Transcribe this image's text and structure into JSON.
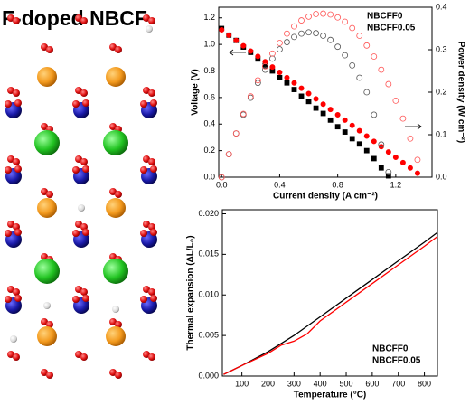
{
  "title": "F-doped NBCF",
  "chart_data": [
    {
      "type": "scatter",
      "xlabel": "Current density (A cm⁻²)",
      "ylabel": "Voltage (V)",
      "y2label": "Power density (W cm⁻²)",
      "xlim": [
        -0.02,
        1.45
      ],
      "xticks": [
        {
          "value": 0,
          "label": "0.0"
        },
        0.4,
        0.8,
        1.2
      ],
      "ylim": [
        0,
        1.28
      ],
      "yticks": [
        {
          "value": 0,
          "label": "0.0"
        },
        0.2,
        0.4,
        0.6,
        0.8,
        {
          "value": 1,
          "label": "1.0"
        },
        1.2
      ],
      "y2lim": [
        0,
        0.4
      ],
      "y2ticks": [
        {
          "value": 0,
          "label": "0.0"
        },
        0.1,
        0.2,
        0.3,
        0.4
      ],
      "legend": "top-right",
      "series": [
        {
          "name": "NBCFF0",
          "color": "#000000",
          "marker": "square",
          "filled": true,
          "x": [
            0,
            0.05,
            0.1,
            0.15,
            0.2,
            0.25,
            0.3,
            0.35,
            0.4,
            0.45,
            0.5,
            0.55,
            0.6,
            0.65,
            0.7,
            0.75,
            0.8,
            0.85,
            0.9,
            0.95,
            1.0,
            1.05,
            1.1,
            1.15
          ],
          "values": [
            1.12,
            1.07,
            1.03,
            0.98,
            0.94,
            0.89,
            0.84,
            0.8,
            0.75,
            0.71,
            0.66,
            0.61,
            0.57,
            0.52,
            0.48,
            0.43,
            0.38,
            0.34,
            0.29,
            0.25,
            0.2,
            0.14,
            0.07,
            0.01
          ]
        },
        {
          "name": "NBCFF0.05",
          "color": "#ff0000",
          "marker": "circle",
          "filled": true,
          "x": [
            0,
            0.05,
            0.1,
            0.15,
            0.2,
            0.25,
            0.3,
            0.35,
            0.4,
            0.45,
            0.5,
            0.55,
            0.6,
            0.65,
            0.7,
            0.75,
            0.8,
            0.85,
            0.9,
            0.95,
            1.0,
            1.05,
            1.1,
            1.15,
            1.2,
            1.25,
            1.3,
            1.35
          ],
          "values": [
            1.11,
            1.07,
            1.03,
            0.99,
            0.95,
            0.91,
            0.87,
            0.83,
            0.79,
            0.75,
            0.71,
            0.67,
            0.63,
            0.59,
            0.55,
            0.51,
            0.47,
            0.43,
            0.39,
            0.35,
            0.31,
            0.27,
            0.23,
            0.19,
            0.15,
            0.11,
            0.07,
            0.03
          ]
        },
        {
          "name": "NBCFF0",
          "color": "#555555",
          "marker": "circle",
          "filled": false,
          "axis": "y2",
          "x": [
            0,
            0.05,
            0.1,
            0.15,
            0.2,
            0.25,
            0.3,
            0.35,
            0.4,
            0.45,
            0.5,
            0.55,
            0.6,
            0.65,
            0.7,
            0.75,
            0.8,
            0.85,
            0.9,
            0.95,
            1.0,
            1.05,
            1.1,
            1.15
          ],
          "values": [
            0,
            0.054,
            0.103,
            0.147,
            0.187,
            0.222,
            0.253,
            0.279,
            0.301,
            0.318,
            0.33,
            0.338,
            0.341,
            0.339,
            0.333,
            0.323,
            0.307,
            0.287,
            0.263,
            0.234,
            0.2,
            0.147,
            0.077,
            0.012
          ]
        },
        {
          "name": "NBCFF0.05",
          "color": "#ff5555",
          "marker": "circle",
          "filled": false,
          "axis": "y2",
          "x": [
            0,
            0.05,
            0.1,
            0.15,
            0.2,
            0.25,
            0.3,
            0.35,
            0.4,
            0.45,
            0.5,
            0.55,
            0.6,
            0.65,
            0.7,
            0.75,
            0.8,
            0.85,
            0.9,
            0.95,
            1.0,
            1.05,
            1.1,
            1.15,
            1.2,
            1.25,
            1.3,
            1.35
          ],
          "values": [
            0,
            0.054,
            0.103,
            0.149,
            0.19,
            0.228,
            0.261,
            0.291,
            0.316,
            0.338,
            0.355,
            0.369,
            0.378,
            0.384,
            0.385,
            0.383,
            0.376,
            0.366,
            0.351,
            0.333,
            0.31,
            0.284,
            0.253,
            0.219,
            0.18,
            0.138,
            0.091,
            0.041
          ]
        }
      ]
    },
    {
      "type": "line",
      "xlabel": "Temperature (°C)",
      "ylabel": "Thermal expansion (ΔL/L₀)",
      "xlim": [
        25,
        850
      ],
      "xticks": [
        100,
        200,
        300,
        400,
        500,
        600,
        700,
        800
      ],
      "ylim": [
        0,
        0.0205
      ],
      "yticks": [
        {
          "value": 0,
          "label": "0.000"
        },
        {
          "value": 0.005,
          "label": "0.005"
        },
        {
          "value": 0.01,
          "label": "0.010"
        },
        {
          "value": 0.015,
          "label": "0.015"
        },
        {
          "value": 0.02,
          "label": "0.020"
        }
      ],
      "legend": "bottom-right",
      "series": [
        {
          "name": "NBCFF0",
          "color": "#000000",
          "x": [
            30,
            100,
            200,
            300,
            400,
            500,
            600,
            700,
            800,
            850
          ],
          "values": [
            0.0002,
            0.0013,
            0.003,
            0.005,
            0.0073,
            0.0096,
            0.0119,
            0.0142,
            0.0165,
            0.0177
          ]
        },
        {
          "name": "NBCFF0.05",
          "color": "#ff0000",
          "x": [
            30,
            100,
            200,
            250,
            300,
            350,
            400,
            500,
            600,
            700,
            800,
            850
          ],
          "values": [
            0.0002,
            0.0013,
            0.0028,
            0.0038,
            0.0043,
            0.0052,
            0.0068,
            0.0091,
            0.0114,
            0.0137,
            0.016,
            0.0172
          ]
        }
      ]
    }
  ]
}
